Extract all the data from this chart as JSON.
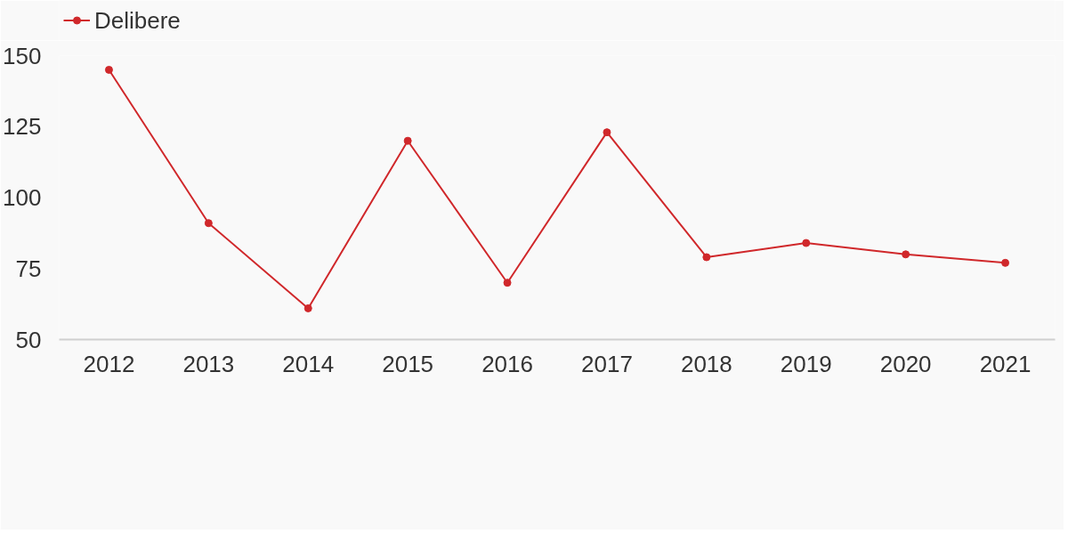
{
  "chart_data": {
    "type": "line",
    "categories": [
      "2012",
      "2013",
      "2014",
      "2015",
      "2016",
      "2017",
      "2018",
      "2019",
      "2020",
      "2021"
    ],
    "series": [
      {
        "name": "Delibere",
        "color": "#d0282b",
        "values": [
          145,
          91,
          61,
          120,
          70,
          123,
          79,
          84,
          80,
          77
        ]
      }
    ],
    "ylim": [
      50,
      150
    ],
    "yticks": [
      50,
      75,
      100,
      125,
      150
    ],
    "grid": false,
    "legend": "top left",
    "marker": "circle",
    "line_style": "solid"
  }
}
